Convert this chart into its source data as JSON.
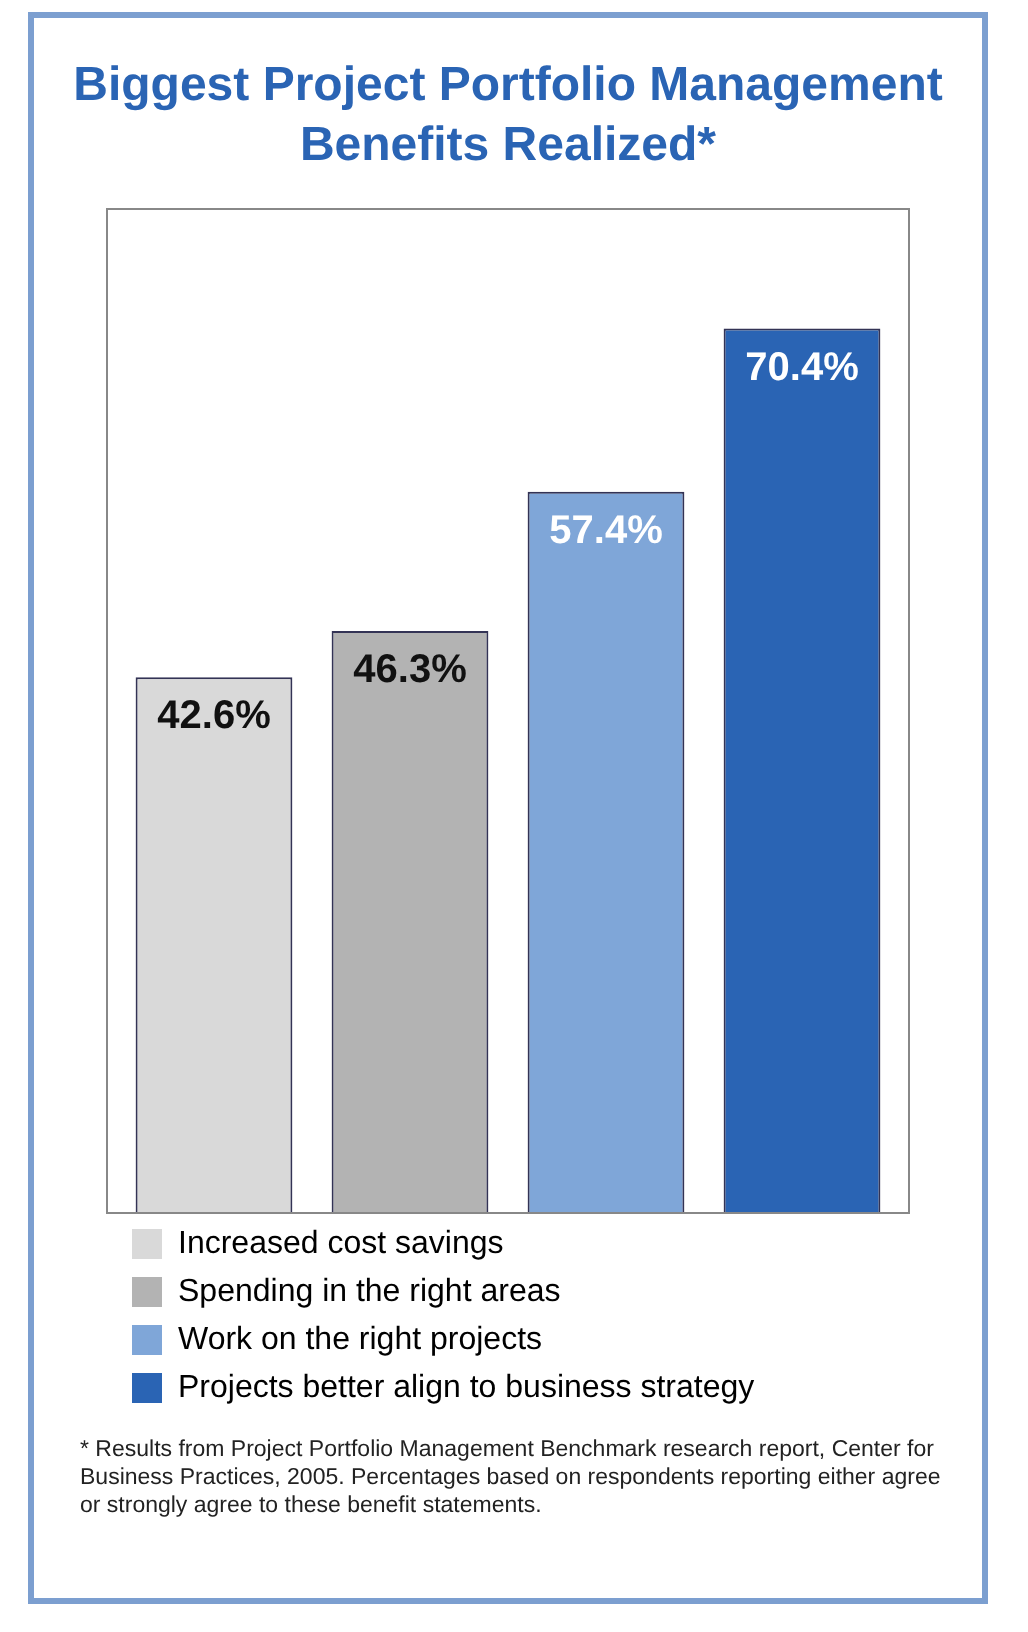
{
  "chart_data": {
    "type": "bar",
    "title": "Biggest Project Portfolio Management Benefits Realized*",
    "categories": [
      null,
      null,
      null,
      null
    ],
    "stacked": true,
    "series": [
      {
        "name": "Increased cost savings",
        "color": "#d9d9d9",
        "values": [
          42.6,
          null,
          null,
          null
        ],
        "value_labels": [
          "42.6%",
          null,
          null,
          null
        ]
      },
      {
        "name": "Spending in the right areas",
        "color": "#b3b3b3",
        "values": [
          null,
          46.3,
          null,
          null
        ],
        "value_labels": [
          null,
          "46.3%",
          null,
          null
        ]
      },
      {
        "name": "Work on the right projects",
        "color": "#7fa6d8",
        "values": [
          null,
          null,
          57.4,
          null
        ],
        "value_labels": [
          null,
          null,
          "57.4%",
          null
        ]
      },
      {
        "name": "Projects better align to business strategy",
        "color": "#2a64b4",
        "values": [
          null,
          null,
          null,
          70.4
        ],
        "value_labels": [
          null,
          null,
          null,
          "70.4%"
        ]
      }
    ],
    "tick_labels": false,
    "legend": "bottom",
    "annotations": [
      "* Results from Project Portfolio Management Benchmark research report, Center for Business Practices, 2005. Percentages based on respondents reporting either agree or strongly agree to these benefit statements."
    ]
  }
}
